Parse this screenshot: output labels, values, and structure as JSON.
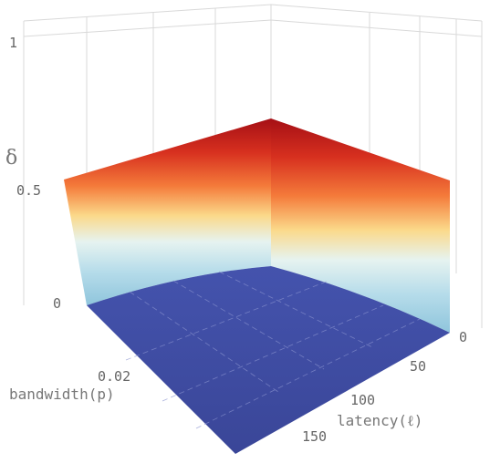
{
  "chart_data": {
    "type": "surface3d",
    "axes": {
      "x": {
        "label": "bandwidth(p)",
        "ticks": [
          {
            "value": 0.02,
            "label": "0.02"
          }
        ]
      },
      "y": {
        "label": "latency(ℓ)",
        "ticks": [
          {
            "value": 0,
            "label": "0"
          },
          {
            "value": 50,
            "label": "50"
          },
          {
            "value": 100,
            "label": "100"
          },
          {
            "value": 150,
            "label": "150"
          }
        ]
      },
      "z": {
        "label": "δ",
        "range": [
          0,
          1
        ],
        "ticks": [
          {
            "value": 0,
            "label": "0"
          },
          {
            "value": 0.5,
            "label": "0.5"
          },
          {
            "value": 1,
            "label": "1"
          }
        ]
      }
    },
    "surface": {
      "description_of_shape": "delta is ~0 over the bandwidth-latency plane and rises to ~0.5 along the p=0 and l=0 edges",
      "edge_max": 0.5,
      "interior_value": 0,
      "colormap": [
        "#3d4aa3",
        "#bfe4ef",
        "#f7e9a3",
        "#f5a04e",
        "#de3b26",
        "#a50f15"
      ]
    },
    "grid": true
  }
}
